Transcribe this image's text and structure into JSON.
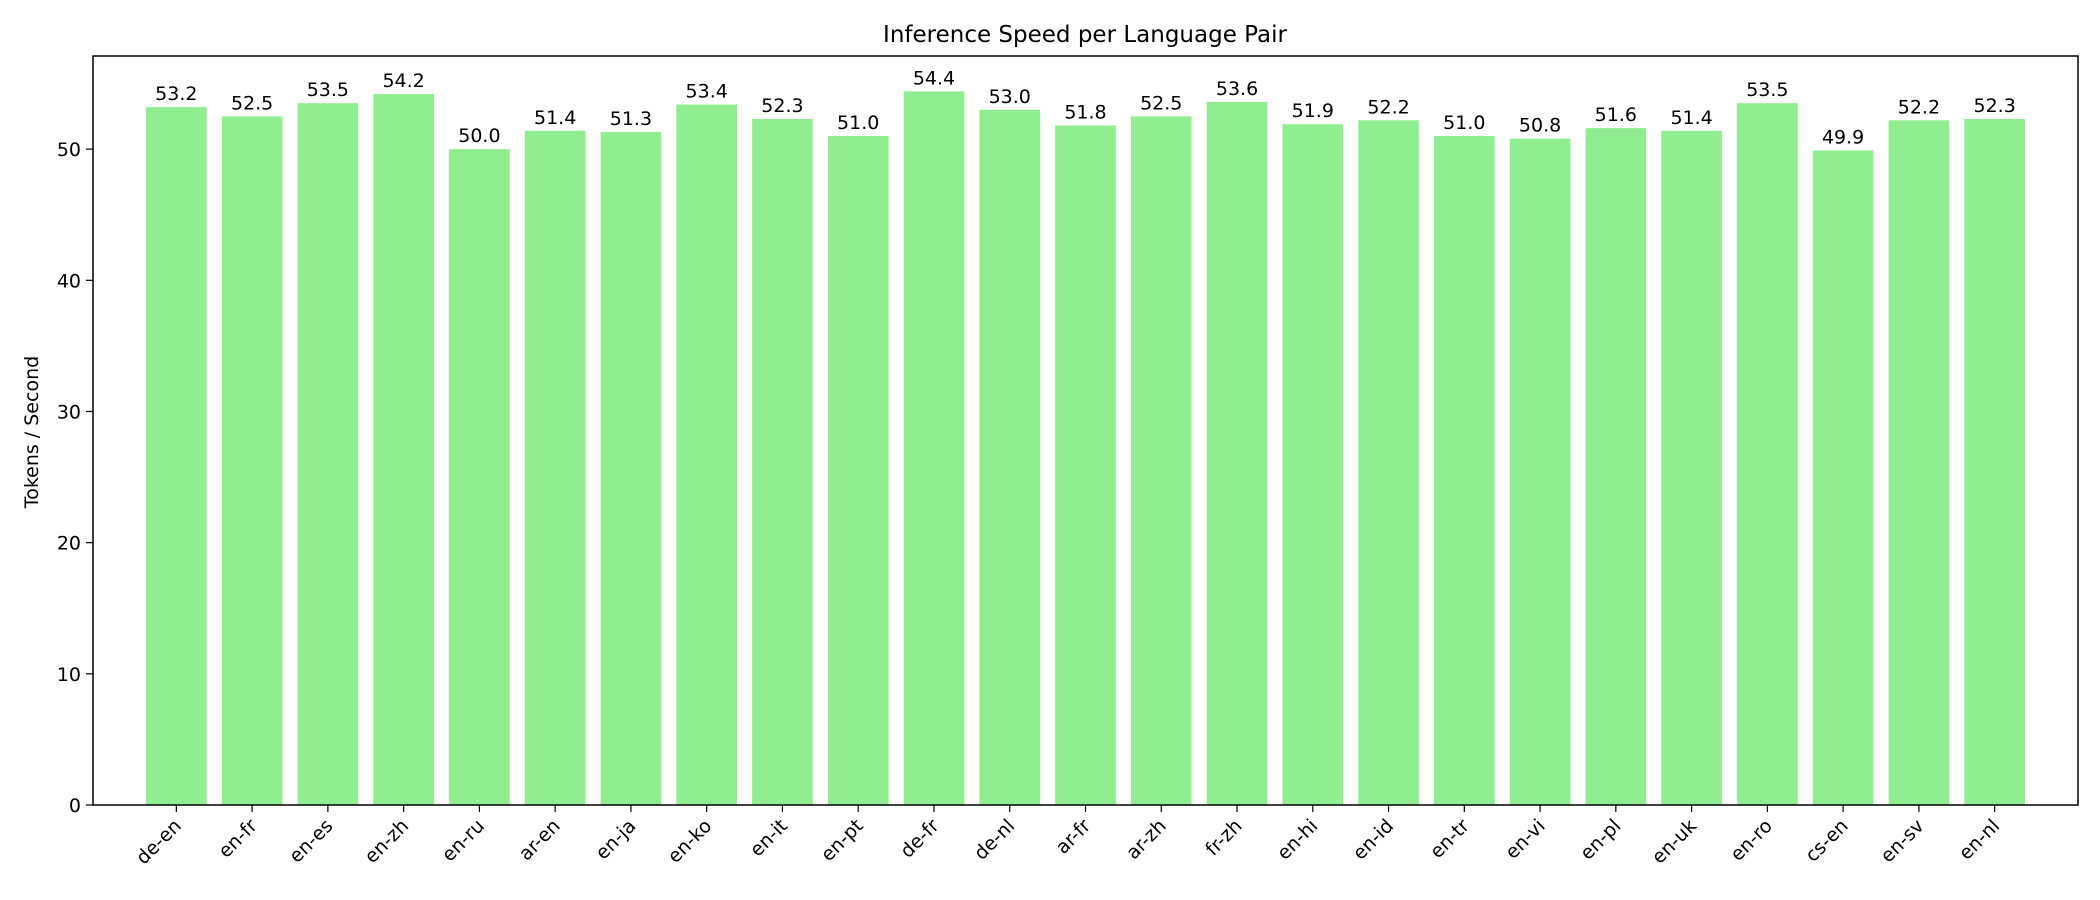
{
  "chart_data": {
    "type": "bar",
    "title": "Inference Speed per Language Pair",
    "xlabel": "",
    "ylabel": "Tokens / Second",
    "categories": [
      "de-en",
      "en-fr",
      "en-es",
      "en-zh",
      "en-ru",
      "ar-en",
      "en-ja",
      "en-ko",
      "en-it",
      "en-pt",
      "de-fr",
      "de-nl",
      "ar-fr",
      "ar-zh",
      "fr-zh",
      "en-hi",
      "en-id",
      "en-tr",
      "en-vi",
      "en-pl",
      "en-uk",
      "en-ro",
      "cs-en",
      "en-sv",
      "en-nl"
    ],
    "values": [
      53.2,
      52.5,
      53.5,
      54.2,
      50.0,
      51.4,
      51.3,
      53.4,
      52.3,
      51.0,
      54.4,
      53.0,
      51.8,
      52.5,
      53.6,
      51.9,
      52.2,
      51.0,
      50.8,
      51.6,
      51.4,
      53.5,
      49.9,
      52.2,
      52.3
    ],
    "data_labels": [
      "53.2",
      "52.5",
      "53.5",
      "54.2",
      "50.0",
      "51.4",
      "51.3",
      "53.4",
      "52.3",
      "51.0",
      "54.4",
      "53.0",
      "51.8",
      "52.5",
      "53.6",
      "51.9",
      "52.2",
      "51.0",
      "50.8",
      "51.6",
      "51.4",
      "53.5",
      "49.9",
      "52.2",
      "52.3"
    ],
    "yticks": [
      0,
      10,
      20,
      30,
      40,
      50
    ],
    "ylim": [
      0,
      57.1
    ],
    "grid": false,
    "bar_color": "#90ee90"
  }
}
